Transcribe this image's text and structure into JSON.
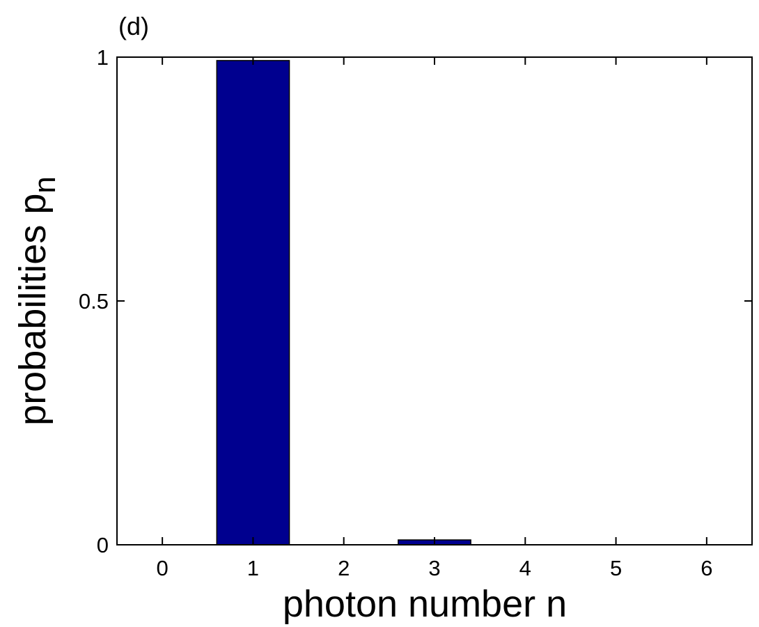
{
  "chart_data": {
    "type": "bar",
    "panel_label": "(d)",
    "xlabel": "photon number n",
    "ylabel": "probabilities p",
    "ylabel_subscript": "n",
    "x": [
      0,
      1,
      2,
      3,
      4,
      5,
      6
    ],
    "values": [
      0,
      0.993,
      0,
      0.01,
      0,
      0,
      0
    ],
    "color": "#00008f",
    "edgecolor": "#000000",
    "bar_width": 0.8,
    "xlim": [
      -0.5,
      6.5
    ],
    "xticks": [
      0,
      1,
      2,
      3,
      4,
      5,
      6
    ],
    "ylim": [
      0,
      1
    ],
    "yticks": [
      0,
      0.5,
      1
    ],
    "grid": false
  }
}
